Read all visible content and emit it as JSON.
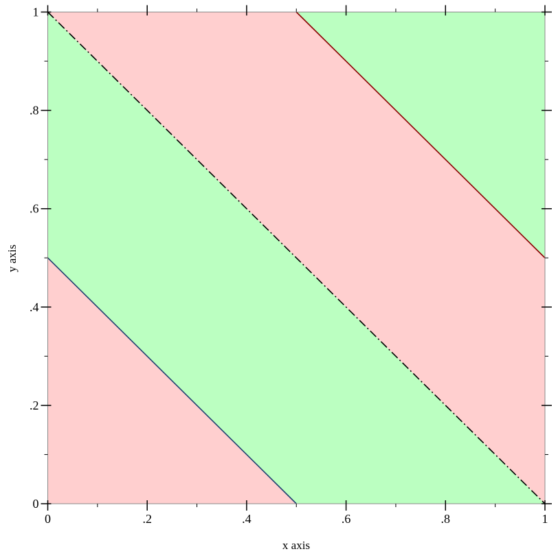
{
  "chart_data": {
    "type": "contour-intervals",
    "function": "x + y",
    "xlabel": "x axis",
    "ylabel": "y axis",
    "xlim": [
      0,
      1
    ],
    "ylim": [
      0,
      1
    ],
    "x_ticks": [
      0,
      0.2,
      0.4,
      0.6,
      0.8,
      1
    ],
    "y_ticks": [
      0,
      0.2,
      0.4,
      0.6,
      0.8,
      1
    ],
    "x_tick_labels": [
      "0",
      ".2",
      ".4",
      ".6",
      ".8",
      "1"
    ],
    "y_tick_labels": [
      "0",
      ".2",
      ".4",
      ".6",
      ".8",
      "1"
    ],
    "minor_ticks": [
      0.1,
      0.3,
      0.5,
      0.7,
      0.9
    ],
    "grid": false,
    "intervals": [
      {
        "from": 0,
        "to": 0.5,
        "color": "#ffcfcf"
      },
      {
        "from": 0.5,
        "to": 1,
        "color": "#bbffc1"
      },
      {
        "from": 1,
        "to": 1.5,
        "color": "#ffcfcf"
      },
      {
        "from": 1.5,
        "to": 2,
        "color": "#bbffc1"
      }
    ],
    "contours": [
      {
        "level": 0.5,
        "color": "#1f3f6f",
        "style": "solid"
      },
      {
        "level": 1,
        "color": "#000000",
        "style": "dash-dot"
      },
      {
        "level": 1.5,
        "color": "#8b0000",
        "style": "solid"
      }
    ]
  }
}
